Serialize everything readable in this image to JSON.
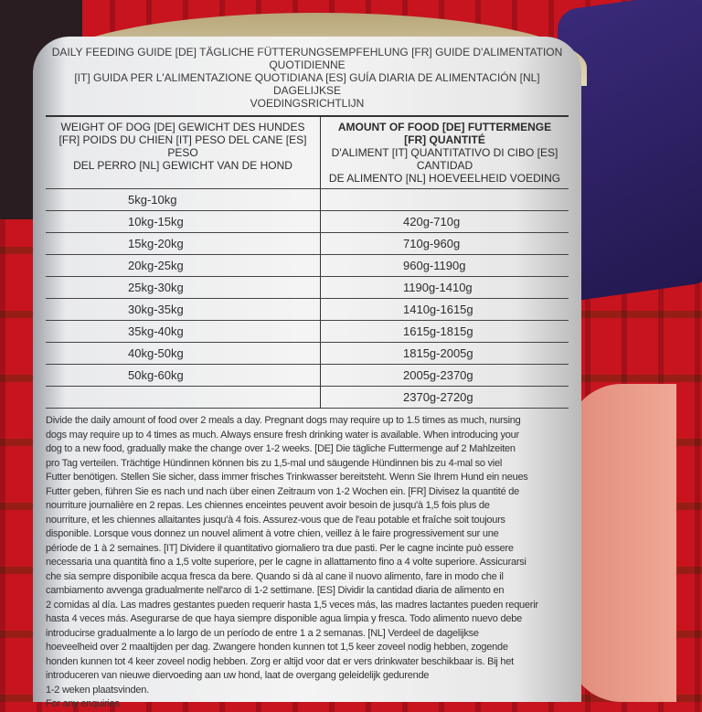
{
  "label": {
    "title_lines": [
      "DAILY FEEDING GUIDE [DE] TÄGLICHE FÜTTERUNGSEMPFEHLUNG [FR] GUIDE D'ALIMENTATION QUOTIDIENNE",
      "[IT] GUIDA PER L'ALIMENTAZIONE QUOTIDIANA [ES] GUÍA DIARIA DE ALIMENTACIÓN [NL] DAGELIJKSE",
      "VOEDINGSRICHTLIJN"
    ],
    "weight_header": [
      "WEIGHT OF DOG [DE] GEWICHT DES HUNDES",
      "[FR] POIDS DU CHIEN [IT] PESO DEL CANE [ES] PESO",
      "DEL PERRO [NL] GEWICHT VAN DE HOND"
    ],
    "amount_header": [
      "AMOUNT OF FOOD [DE] FUTTERMENGE [FR] QUANTITÉ",
      "D'ALIMENT [IT] QUANTITATIVO DI CIBO [ES] CANTIDAD",
      "DE ALIMENTO [NL] HOEVEELHEID VOEDING"
    ],
    "rows": [
      {
        "weight": "5kg-10kg",
        "amount": ""
      },
      {
        "weight": "10kg-15kg",
        "amount": "420g-710g"
      },
      {
        "weight": "15kg-20kg",
        "amount": "710g-960g"
      },
      {
        "weight": "20kg-25kg",
        "amount": "960g-1190g"
      },
      {
        "weight": "25kg-30kg",
        "amount": "1190g-1410g"
      },
      {
        "weight": "30kg-35kg",
        "amount": "1410g-1615g"
      },
      {
        "weight": "35kg-40kg",
        "amount": "1615g-1815g"
      },
      {
        "weight": "40kg-50kg",
        "amount": "1815g-2005g"
      },
      {
        "weight": "50kg-60kg",
        "amount": "2005g-2370g"
      },
      {
        "weight": "",
        "amount": "2370g-2720g"
      }
    ],
    "paragraph_lines": [
      "Divide the daily amount of food over 2 meals a day. Pregnant dogs may require up to 1.5 times as much, nursing",
      "dogs may require up to 4 times as much. Always ensure fresh drinking water is available. When introducing your",
      "dog to a new food, gradually make the change over 1-2 weeks. [DE] Die tägliche Futtermenge auf 2 Mahlzeiten",
      "pro Tag verteilen. Trächtige Hündinnen können bis zu 1,5-mal und säugende Hündinnen bis zu 4-mal so viel",
      "Futter benötigen. Stellen Sie sicher, dass immer frisches Trinkwasser bereitsteht. Wenn Sie Ihrem Hund ein neues",
      "Futter geben, führen Sie es nach und nach über einen Zeitraum von 1-2 Wochen ein. [FR] Divisez la quantité de",
      "nourriture journalière en 2 repas. Les chiennes enceintes peuvent avoir besoin de jusqu'à 1,5 fois plus de",
      "nourriture, et les chiennes allaitantes jusqu'à 4 fois. Assurez-vous que de l'eau potable et fraîche soit toujours",
      "disponible. Lorsque vous donnez un nouvel aliment à votre chien, veillez à le faire progressivement sur une",
      "période de 1 à 2 semaines. [IT] Dividere il quantitativo giornaliero tra due pasti. Per le cagne incinte può essere",
      "necessaria una quantità fino a 1,5 volte superiore, per le cagne in allattamento fino a 4 volte superiore. Assicurarsi",
      "che sia sempre disponibile acqua fresca da bere. Quando si dà al cane il nuovo alimento, fare in modo che il",
      "cambiamento avvenga gradualmente nell'arco di 1-2 settimane. [ES] Dividir la cantidad diaria de alimento en",
      "2 comidas al día. Las madres gestantes pueden requerir hasta 1,5 veces más, las madres lactantes pueden requerir",
      "hasta 4 veces más. Asegurarse de que haya siempre disponible agua limpia y fresca. Todo alimento nuevo debe",
      "introducirse gradualmente a lo largo de un período de entre 1 a 2 semanas. [NL] Verdeel de dagelijkse",
      "hoeveelheid over 2 maaltijden per dag. Zwangere honden kunnen tot 1,5 keer zoveel nodig hebben, zogende",
      "honden kunnen tot 4 keer zoveel nodig hebben. Zorg er altijd voor dat er vers drinkwater beschikbaar is. Bij het",
      "introduceren van nieuwe diervoeding aan uw hond, laat de overgang geleidelijk gedurende",
      "1-2 weken plaatsvinden.",
      "For any enquiries"
    ]
  }
}
